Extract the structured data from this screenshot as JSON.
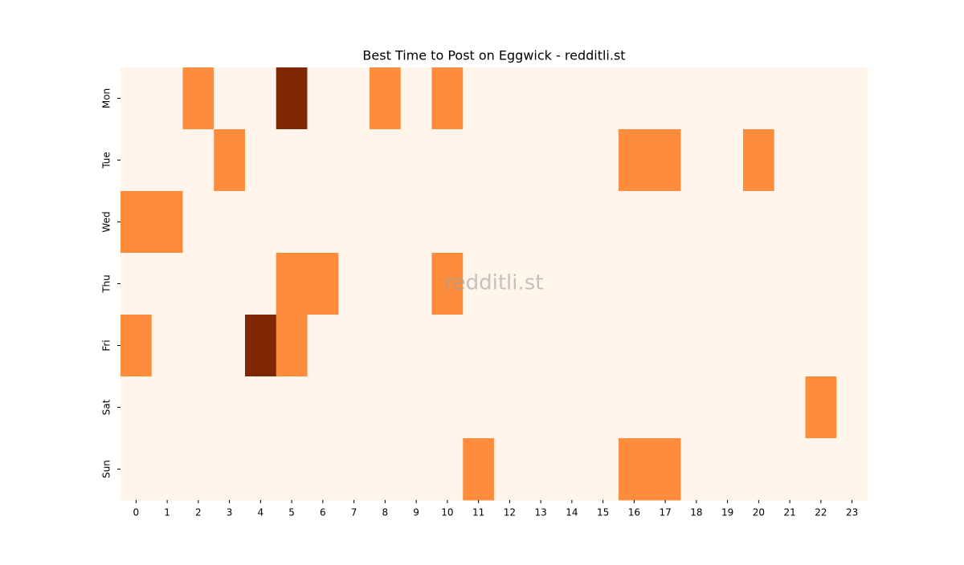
{
  "chart_data": {
    "type": "heatmap",
    "title": "Best Time to Post on Eggwick - redditli.st",
    "watermark": "redditli.st",
    "x": [
      0,
      1,
      2,
      3,
      4,
      5,
      6,
      7,
      8,
      9,
      10,
      11,
      12,
      13,
      14,
      15,
      16,
      17,
      18,
      19,
      20,
      21,
      22,
      23
    ],
    "y": [
      "Mon",
      "Tue",
      "Wed",
      "Thu",
      "Fri",
      "Sat",
      "Sun"
    ],
    "values": [
      [
        0,
        0,
        1,
        0,
        0,
        2,
        0,
        0,
        1,
        0,
        1,
        0,
        0,
        0,
        0,
        0,
        0,
        0,
        0,
        0,
        0,
        0,
        0,
        0
      ],
      [
        0,
        0,
        0,
        1,
        0,
        0,
        0,
        0,
        0,
        0,
        0,
        0,
        0,
        0,
        0,
        0,
        1,
        1,
        0,
        0,
        1,
        0,
        0,
        0
      ],
      [
        1,
        1,
        0,
        0,
        0,
        0,
        0,
        0,
        0,
        0,
        0,
        0,
        0,
        0,
        0,
        0,
        0,
        0,
        0,
        0,
        0,
        0,
        0,
        0
      ],
      [
        0,
        0,
        0,
        0,
        0,
        1,
        1,
        0,
        0,
        0,
        1,
        0,
        0,
        0,
        0,
        0,
        0,
        0,
        0,
        0,
        0,
        0,
        0,
        0
      ],
      [
        1,
        0,
        0,
        0,
        2,
        1,
        0,
        0,
        0,
        0,
        0,
        0,
        0,
        0,
        0,
        0,
        0,
        0,
        0,
        0,
        0,
        0,
        0,
        0
      ],
      [
        0,
        0,
        0,
        0,
        0,
        0,
        0,
        0,
        0,
        0,
        0,
        0,
        0,
        0,
        0,
        0,
        0,
        0,
        0,
        0,
        0,
        0,
        1,
        0
      ],
      [
        0,
        0,
        0,
        0,
        0,
        0,
        0,
        0,
        0,
        0,
        0,
        1,
        0,
        0,
        0,
        0,
        1,
        1,
        0,
        0,
        0,
        0,
        0,
        0
      ]
    ],
    "vlim": [
      0,
      2
    ],
    "colormap": [
      "#fff5eb",
      "#fd8d3c",
      "#7f2704"
    ]
  }
}
